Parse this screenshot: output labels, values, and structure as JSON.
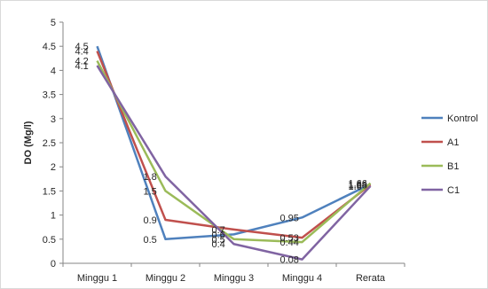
{
  "chart_data": {
    "type": "line",
    "title": "",
    "xlabel": "",
    "ylabel": "DO (Mg/l)",
    "categories": [
      "Minggu 1",
      "Minggu 2",
      "Minggu 3",
      "Minggu 4",
      "Rerata"
    ],
    "ylim": [
      0,
      5
    ],
    "yticks": [
      "0",
      "0.5",
      "1",
      "1.5",
      "2",
      "2.5",
      "3",
      "3.5",
      "4",
      "4.5",
      "5"
    ],
    "grid": false,
    "legend_position": "right",
    "series": [
      {
        "name": "Kontrol",
        "color": "#4f81bd",
        "values": [
          4.5,
          0.5,
          0.6,
          0.95,
          1.64
        ],
        "labels": [
          "4.5",
          "0.5",
          "0.6",
          "0.95",
          "1.64"
        ]
      },
      {
        "name": "A1",
        "color": "#c0504d",
        "values": [
          4.4,
          0.9,
          0.7,
          0.53,
          1.63
        ],
        "labels": [
          "4.4",
          "0.9",
          "0.7",
          "0.53",
          "1.63"
        ]
      },
      {
        "name": "B1",
        "color": "#9bbb59",
        "values": [
          4.2,
          1.5,
          0.5,
          0.44,
          1.66
        ],
        "labels": [
          "4.2",
          "1.5",
          "0.5",
          "0.44",
          "1.66"
        ]
      },
      {
        "name": "C1",
        "color": "#8064a2",
        "values": [
          4.1,
          1.8,
          0.4,
          0.08,
          1.6
        ],
        "labels": [
          "4.1",
          "1.8",
          "0.4",
          "0.08",
          "1.6"
        ]
      }
    ]
  }
}
